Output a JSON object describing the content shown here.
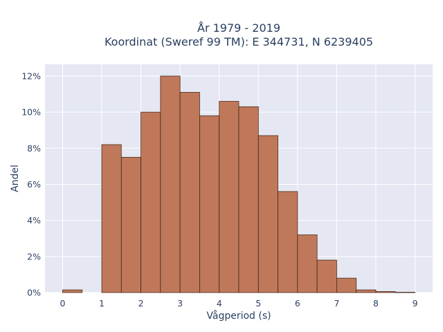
{
  "chart_data": {
    "type": "bar",
    "title_lines": [
      "År 1979 - 2019",
      "Koordinat (Sweref 99 TM): E 344731, N 6239405"
    ],
    "xlabel": "Vågperiod (s)",
    "ylabel": "Andel",
    "bin_width": 0.5,
    "x_ticks": [
      0,
      1,
      2,
      3,
      4,
      5,
      6,
      7,
      8,
      9
    ],
    "y_ticks": [
      0,
      0.02,
      0.04,
      0.06,
      0.08,
      0.1,
      0.12
    ],
    "y_tick_labels": [
      "0%",
      "2%",
      "4%",
      "6%",
      "8%",
      "10%",
      "12%"
    ],
    "xlim": [
      -0.45,
      9.45
    ],
    "ylim": [
      0,
      0.1265
    ],
    "bins": [
      {
        "start": 0.0,
        "value": 0.0015
      },
      {
        "start": 0.5,
        "value": 0.0
      },
      {
        "start": 1.0,
        "value": 0.082
      },
      {
        "start": 1.5,
        "value": 0.075
      },
      {
        "start": 2.0,
        "value": 0.1
      },
      {
        "start": 2.5,
        "value": 0.12
      },
      {
        "start": 3.0,
        "value": 0.111
      },
      {
        "start": 3.5,
        "value": 0.098
      },
      {
        "start": 4.0,
        "value": 0.106
      },
      {
        "start": 4.5,
        "value": 0.103
      },
      {
        "start": 5.0,
        "value": 0.087
      },
      {
        "start": 5.5,
        "value": 0.056
      },
      {
        "start": 6.0,
        "value": 0.032
      },
      {
        "start": 6.5,
        "value": 0.018
      },
      {
        "start": 7.0,
        "value": 0.008
      },
      {
        "start": 7.5,
        "value": 0.0015
      },
      {
        "start": 8.0,
        "value": 0.0006
      },
      {
        "start": 8.5,
        "value": 0.0002
      }
    ],
    "bar_color": "#c0785a",
    "bar_edge_color": "#3a1f10",
    "plot_bg": "#e5e8f2",
    "grid_color": "#ffffff",
    "grid": true
  }
}
